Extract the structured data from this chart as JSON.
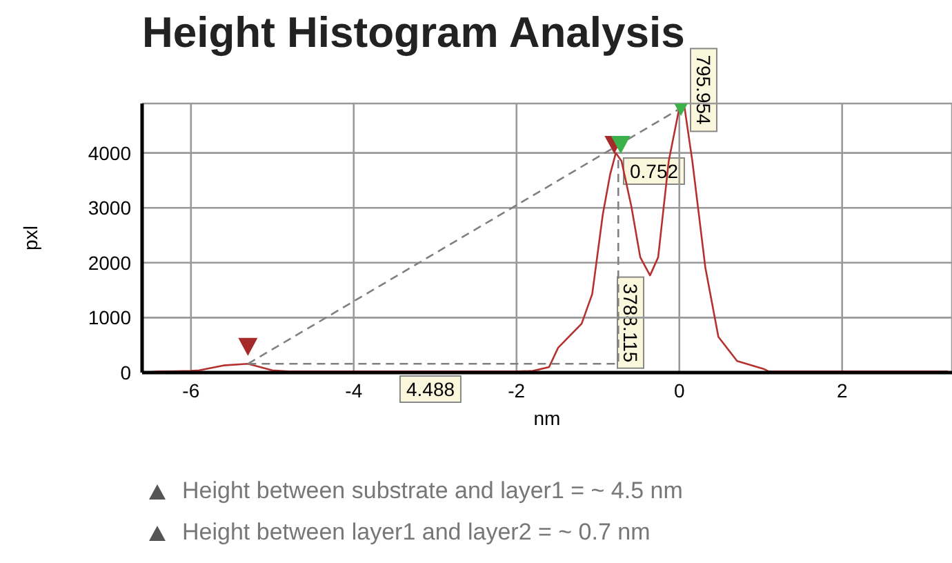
{
  "chart_data": {
    "type": "line",
    "title": "Height Histogram Analysis",
    "xlabel": "nm",
    "ylabel": "pxl",
    "xlim": [
      -6.6,
      3.35
    ],
    "xticks": [
      -6,
      -4,
      -2,
      0,
      2
    ],
    "ylim": [
      0,
      4900
    ],
    "yticks": [
      0,
      1000,
      2000,
      3000,
      4000
    ],
    "grid": true,
    "series": [
      {
        "type": "line",
        "color": "#b5312f",
        "marker": "none",
        "line_style": "solid",
        "x": [
          -6.6,
          -6.4,
          -6.0,
          -5.9,
          -5.6,
          -5.3,
          -5.0,
          -4.8,
          -4.0,
          -2.0,
          -1.8,
          -1.6,
          -1.49,
          -1.2,
          -1.07,
          -0.94,
          -0.85,
          -0.78,
          -0.71,
          -0.59,
          -0.48,
          -0.36,
          -0.26,
          -0.13,
          0.0,
          0.06,
          0.16,
          0.32,
          0.48,
          0.71,
          1.03,
          1.1,
          2.0,
          3.3
        ],
        "values": [
          0,
          20,
          30,
          40,
          130,
          160,
          40,
          20,
          20,
          20,
          30,
          100,
          450,
          890,
          1430,
          2880,
          3610,
          4000,
          3850,
          3030,
          2100,
          1770,
          2100,
          3850,
          4820,
          4870,
          3850,
          1910,
          650,
          210,
          70,
          20,
          20,
          20
        ]
      },
      {
        "type": "line",
        "color": "#808080",
        "marker": "none",
        "line_style": "dashed",
        "x": [
          -5.3,
          -0.75,
          -0.75
        ],
        "values": [
          160,
          160,
          3950
        ]
      },
      {
        "type": "line",
        "color": "#808080",
        "marker": "none",
        "line_style": "dashed",
        "x": [
          -5.3,
          0.0
        ],
        "values": [
          160,
          4800
        ]
      },
      {
        "type": "scatter",
        "color": "#a52a2a",
        "marker": "triangle",
        "x": [
          -5.3,
          -0.8
        ],
        "values": [
          480,
          4160
        ]
      },
      {
        "type": "scatter",
        "color": "#3cb04a",
        "marker": "triangle",
        "x": [
          -0.72,
          0.02
        ],
        "values": [
          4160,
          4850
        ]
      }
    ],
    "annotations": [
      "4.488",
      "0.752",
      "3788.115",
      "795.954",
      "Height between substrate and layer1 = ~ 4.5 nm",
      "Height between layer1 and layer2 = ~ 0.7 nm"
    ]
  }
}
